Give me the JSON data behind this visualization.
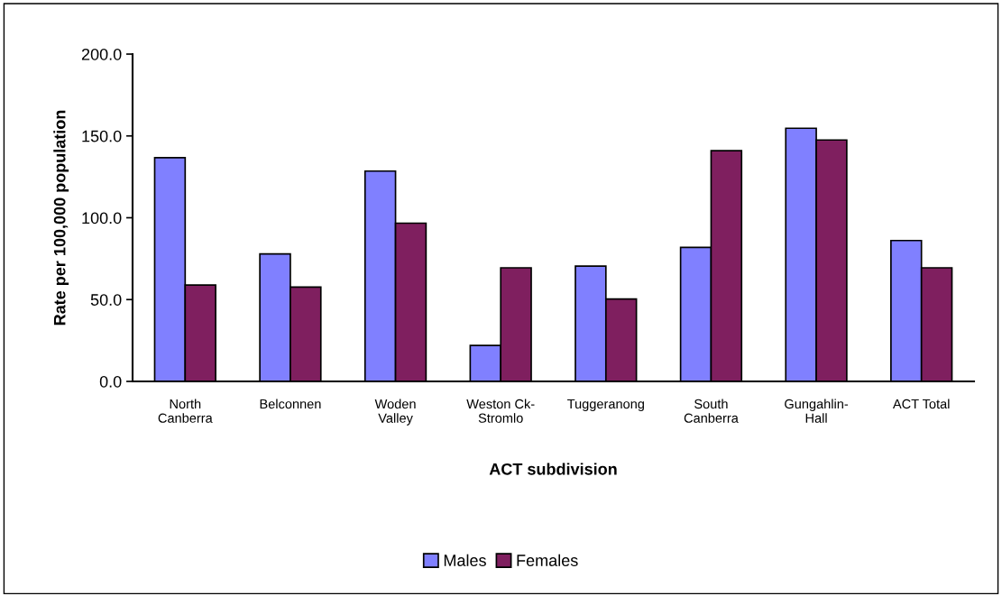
{
  "chart_data": {
    "type": "bar",
    "xlabel": "ACT subdivision",
    "ylabel": "Rate per 100,000 population",
    "categories": [
      "North\nCanberra",
      "Belconnen",
      "Woden\nValley",
      "Weston Ck-\nStromlo",
      "Tuggeranong",
      "South\nCanberra",
      "Gungahlin-\nHall",
      "ACT Total"
    ],
    "series": [
      {
        "name": "Males",
        "color": "#8080ff",
        "values": [
          136.7,
          77.9,
          128.5,
          22.0,
          70.5,
          81.9,
          154.7,
          86.1
        ]
      },
      {
        "name": "Females",
        "color": "#7f1f5f",
        "values": [
          58.9,
          57.6,
          96.7,
          69.4,
          50.3,
          141.0,
          147.5,
          69.4
        ]
      }
    ],
    "ylim": [
      0,
      200
    ],
    "yticks": [
      {
        "value": 0,
        "label": "0.0"
      },
      {
        "value": 50,
        "label": "50.0"
      },
      {
        "value": 100,
        "label": "100.0"
      },
      {
        "value": 150,
        "label": "150.0"
      },
      {
        "value": 200,
        "label": "200.0"
      }
    ],
    "grid": false,
    "legend": "bottom"
  }
}
